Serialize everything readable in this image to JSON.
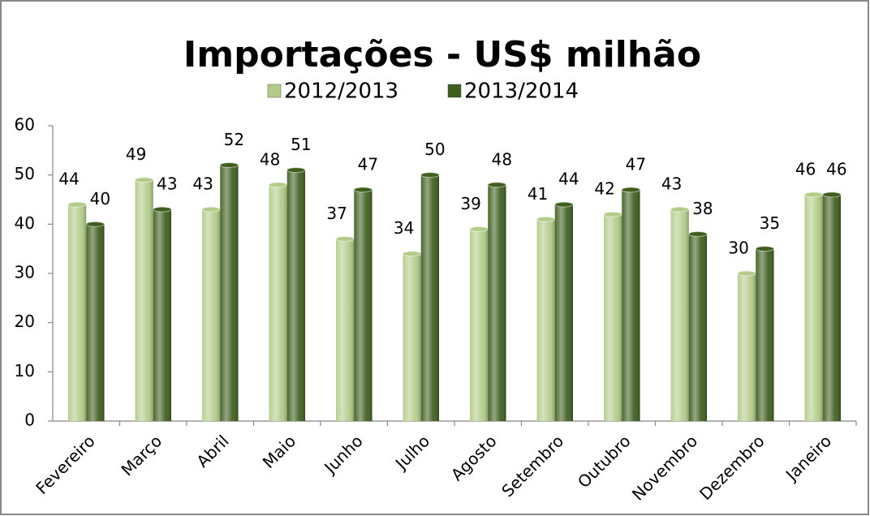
{
  "chart_data": {
    "type": "bar",
    "title": "Importações - US$ milhão",
    "categories": [
      "Fevereiro",
      "Março",
      "Abril",
      "Maio",
      "Junho",
      "Julho",
      "Agosto",
      "Setembro",
      "Outubro",
      "Novembro",
      "Dezembro",
      "Janeiro"
    ],
    "series": [
      {
        "name": "2012/2013",
        "color": "#b3cc8a",
        "values": [
          44,
          49,
          43,
          48,
          37,
          34,
          39,
          41,
          42,
          43,
          30,
          46
        ]
      },
      {
        "name": "2013/2014",
        "color": "#3f5f1f",
        "values": [
          40,
          43,
          52,
          51,
          47,
          50,
          48,
          44,
          47,
          38,
          35,
          46
        ]
      }
    ],
    "ylim": [
      0,
      60
    ],
    "yticks": [
      0,
      10,
      20,
      30,
      40,
      50,
      60
    ],
    "grid": false,
    "legend": "top"
  }
}
